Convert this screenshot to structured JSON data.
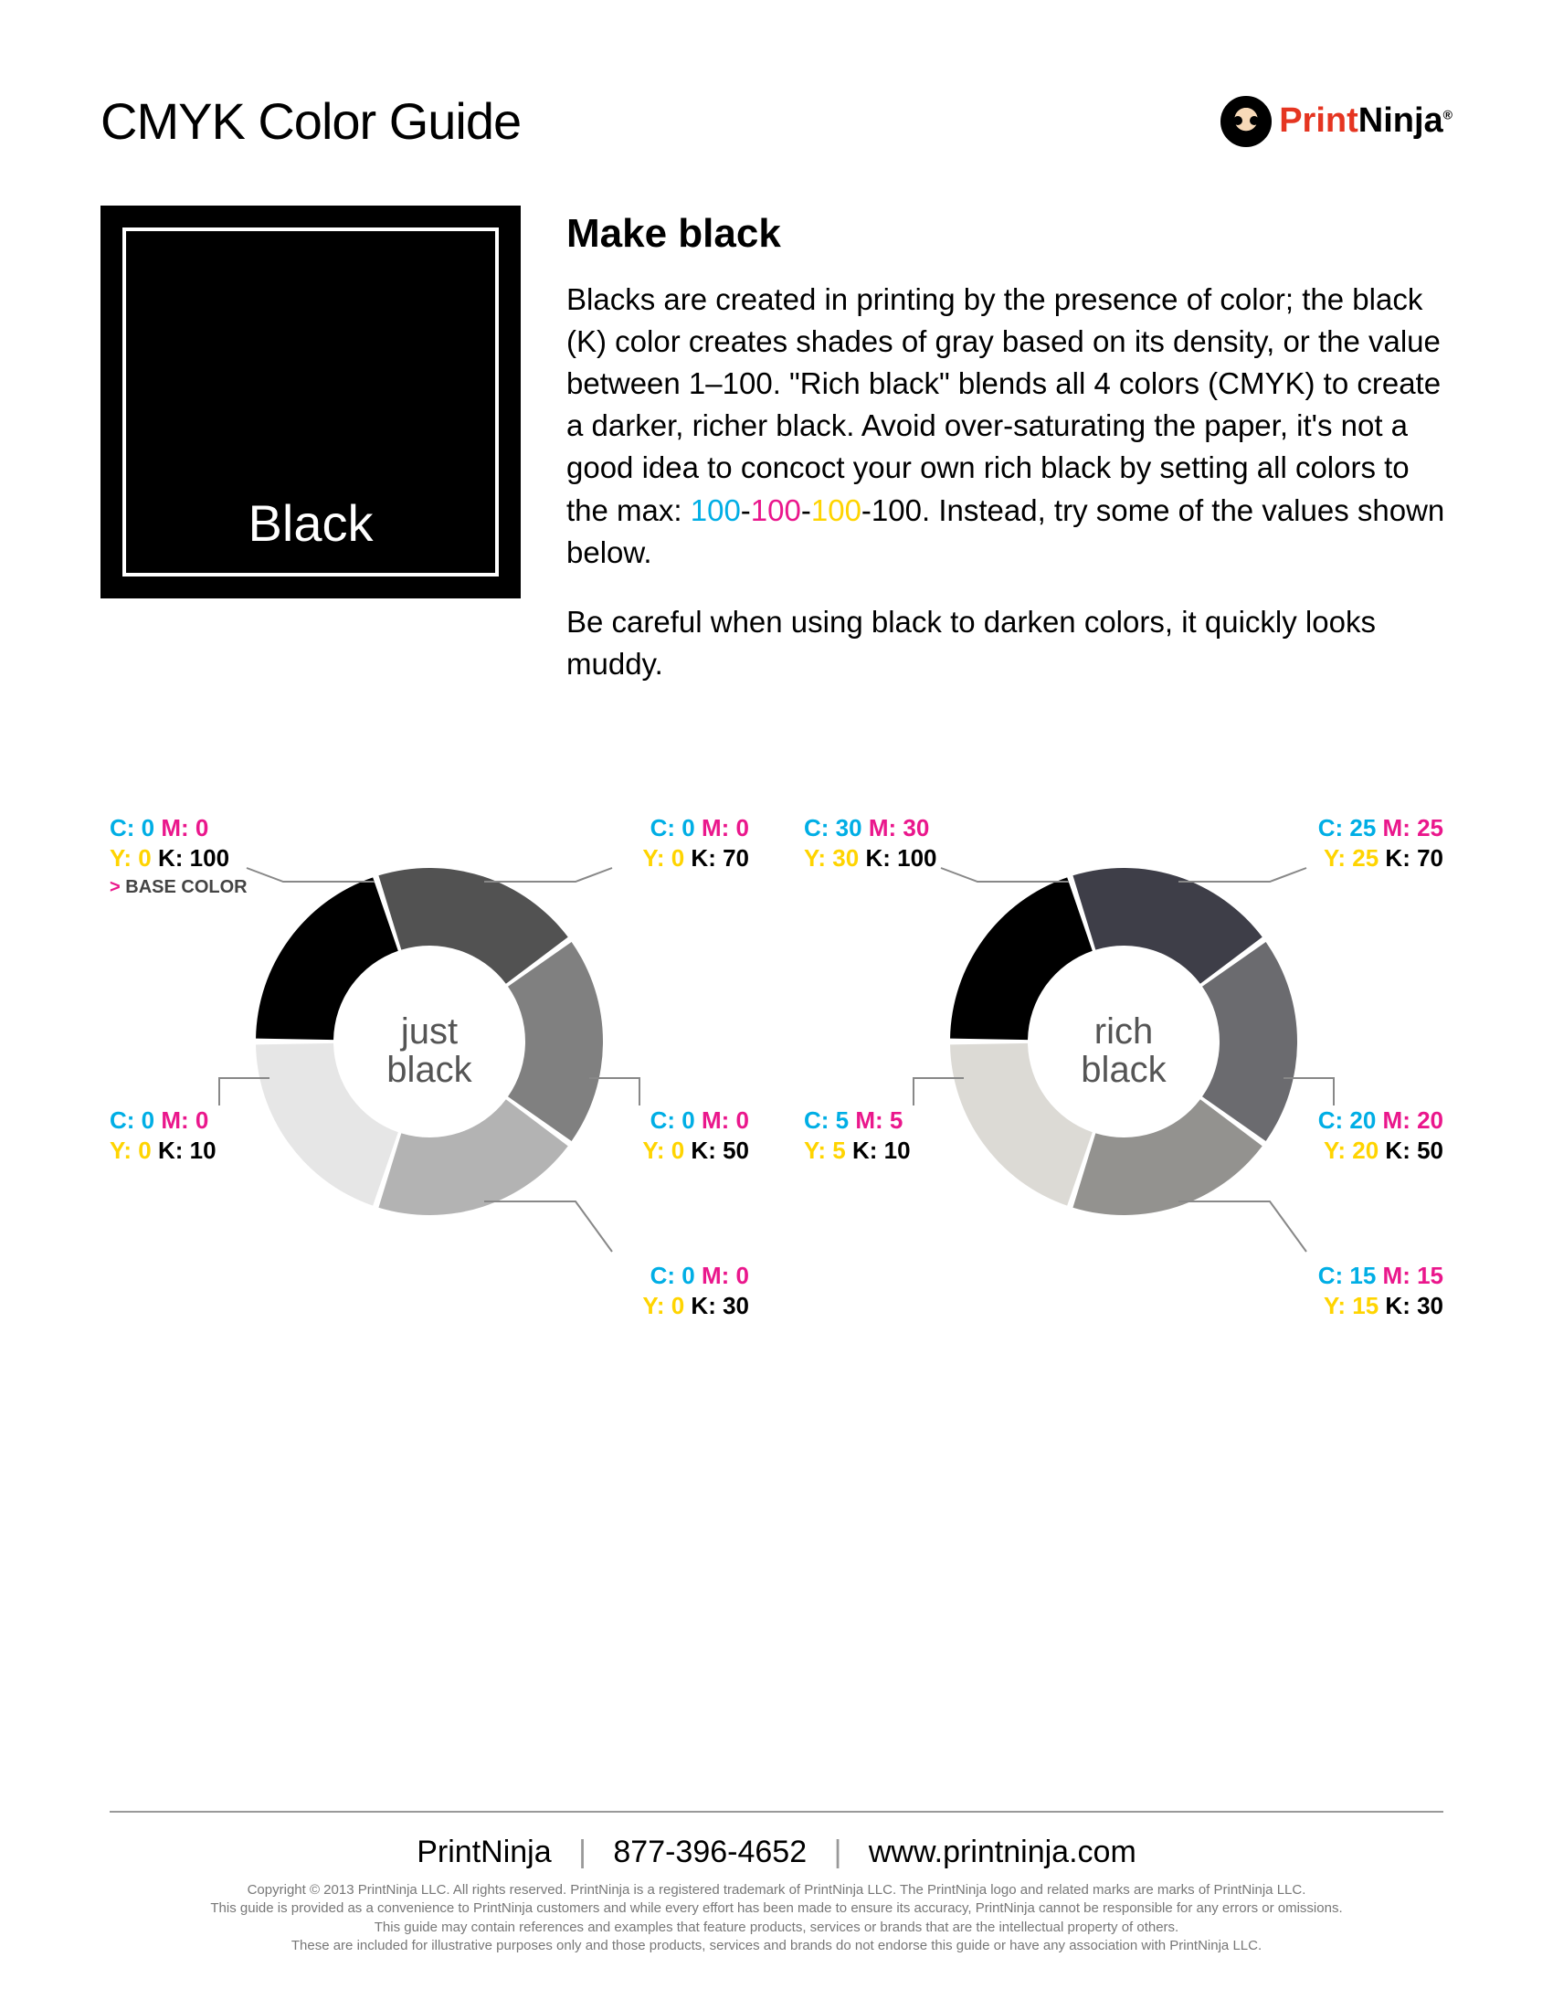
{
  "page": {
    "title": "CMYK Color Guide",
    "brand": {
      "part1": "Print",
      "part2": "Ninja",
      "reg": "®"
    }
  },
  "swatch": {
    "label": "Black"
  },
  "article": {
    "heading": "Make black",
    "p1a": "Blacks are created in printing by the presence of color; the black (K) color creates shades of gray based on its density, or the value between 1–100. \"Rich black\" blends all 4 colors (CMYK) to create a darker, richer black. Avoid over-saturating the paper, it's not a good idea to concoct your own rich black by setting all colors to the max: ",
    "v_c": "100",
    "d1": "-",
    "v_m": "100",
    "d2": "-",
    "v_y": "100",
    "d3": "-",
    "v_k": "100",
    "p1b": ". Instead, try some of the values shown below.",
    "p2": "Be careful when using black to darken colors, it quickly looks muddy."
  },
  "colors": {
    "cyan": "#00aee5",
    "magenta": "#ea178c",
    "yellow": "#ffd400",
    "black": "#000000"
  },
  "wheels": {
    "just": {
      "center_line1": "just",
      "center_line2": "black",
      "type": "donut",
      "outer_r": 190,
      "inner_r": 105,
      "gap_deg": 2,
      "segments": [
        {
          "c": 0,
          "m": 0,
          "y": 0,
          "k": 100,
          "fill": "#000000",
          "is_base": true
        },
        {
          "c": 0,
          "m": 0,
          "y": 0,
          "k": 70,
          "fill": "#525252"
        },
        {
          "c": 0,
          "m": 0,
          "y": 0,
          "k": 50,
          "fill": "#808080"
        },
        {
          "c": 0,
          "m": 0,
          "y": 0,
          "k": 30,
          "fill": "#b3b3b3"
        },
        {
          "c": 0,
          "m": 0,
          "y": 0,
          "k": 10,
          "fill": "#e6e6e6"
        }
      ],
      "base_label": "BASE COLOR"
    },
    "rich": {
      "center_line1": "rich",
      "center_line2": "black",
      "type": "donut",
      "outer_r": 190,
      "inner_r": 105,
      "gap_deg": 2,
      "segments": [
        {
          "c": 30,
          "m": 30,
          "y": 30,
          "k": 100,
          "fill": "#000000"
        },
        {
          "c": 25,
          "m": 25,
          "y": 25,
          "k": 70,
          "fill": "#3e3e48"
        },
        {
          "c": 20,
          "m": 20,
          "y": 20,
          "k": 50,
          "fill": "#6b6b6f"
        },
        {
          "c": 15,
          "m": 15,
          "y": 15,
          "k": 30,
          "fill": "#93928f"
        },
        {
          "c": 5,
          "m": 5,
          "y": 5,
          "k": 10,
          "fill": "#dcdad5"
        }
      ]
    }
  },
  "footer": {
    "company": "PrintNinja",
    "phone": "877-396-4652",
    "url": "www.printninja.com",
    "fine1": "Copyright © 2013 PrintNinja LLC. All rights reserved. PrintNinja is a registered trademark of PrintNinja LLC. The PrintNinja logo and related marks are marks of PrintNinja LLC.",
    "fine2": "This guide is provided as a convenience to PrintNinja customers and while every effort has been made to ensure its accuracy, PrintNinja cannot be responsible for any errors or omissions.",
    "fine3": "This guide may contain references and examples that feature products, services or brands that are the intellectual property of others.",
    "fine4": "These are included for illustrative purposes only and those products, services and brands do not endorse this guide or have any association with PrintNinja LLC."
  }
}
